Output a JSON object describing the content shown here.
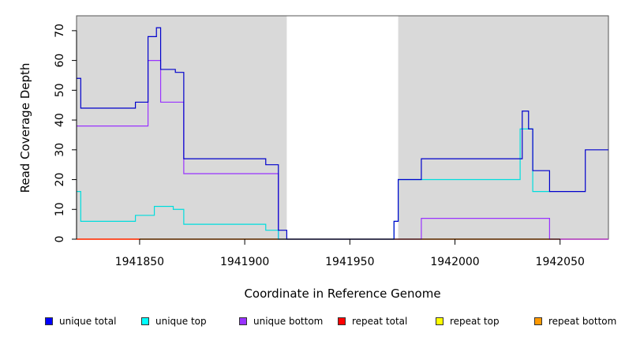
{
  "chart_data": {
    "type": "line",
    "xlabel": "Coordinate in Reference Genome",
    "ylabel": "Read Coverage Depth",
    "xlim": [
      1941820,
      1942073
    ],
    "ylim": [
      0,
      75
    ],
    "x_ticks": [
      1941850,
      1941900,
      1941950,
      1942000,
      1942050
    ],
    "y_ticks": [
      0,
      10,
      20,
      30,
      40,
      50,
      60,
      70
    ],
    "x_tick_labels": [
      "1941850",
      "1941900",
      "1941950",
      "1942000",
      "1942050"
    ],
    "y_tick_labels": [
      "0",
      "10",
      "20",
      "30",
      "40",
      "50",
      "60",
      "70"
    ],
    "shaded_regions": [
      [
        1941820,
        1941920
      ],
      [
        1941973,
        1942073
      ]
    ],
    "shade_color": "#d9d9d9",
    "series": [
      {
        "name": "unique total",
        "color": "#0000cc",
        "points": [
          [
            1941820,
            54
          ],
          [
            1941822,
            54
          ],
          [
            1941822,
            44
          ],
          [
            1941848,
            44
          ],
          [
            1941848,
            46
          ],
          [
            1941854,
            46
          ],
          [
            1941854,
            68
          ],
          [
            1941858,
            68
          ],
          [
            1941858,
            71
          ],
          [
            1941860,
            71
          ],
          [
            1941860,
            57
          ],
          [
            1941867,
            57
          ],
          [
            1941867,
            56
          ],
          [
            1941871,
            56
          ],
          [
            1941871,
            27
          ],
          [
            1941910,
            27
          ],
          [
            1941910,
            25
          ],
          [
            1941916,
            25
          ],
          [
            1941916,
            3
          ],
          [
            1941920,
            3
          ],
          [
            1941920,
            0
          ],
          [
            1941971,
            0
          ],
          [
            1941971,
            6
          ],
          [
            1941973,
            6
          ],
          [
            1941973,
            20
          ],
          [
            1941984,
            20
          ],
          [
            1941984,
            27
          ],
          [
            1942032,
            27
          ],
          [
            1942032,
            43
          ],
          [
            1942035,
            43
          ],
          [
            1942035,
            37
          ],
          [
            1942037,
            37
          ],
          [
            1942037,
            23
          ],
          [
            1942045,
            23
          ],
          [
            1942045,
            16
          ],
          [
            1942062,
            16
          ],
          [
            1942062,
            30
          ],
          [
            1942073,
            30
          ]
        ]
      },
      {
        "name": "unique top",
        "color": "#00dddd",
        "points": [
          [
            1941820,
            16
          ],
          [
            1941822,
            16
          ],
          [
            1941822,
            6
          ],
          [
            1941848,
            6
          ],
          [
            1941848,
            8
          ],
          [
            1941857,
            8
          ],
          [
            1941857,
            11
          ],
          [
            1941866,
            11
          ],
          [
            1941866,
            10
          ],
          [
            1941871,
            10
          ],
          [
            1941871,
            5
          ],
          [
            1941910,
            5
          ],
          [
            1941910,
            3
          ],
          [
            1941916,
            3
          ],
          [
            1941916,
            0
          ],
          [
            1941971,
            0
          ],
          [
            1941971,
            6
          ],
          [
            1941973,
            6
          ],
          [
            1941973,
            20
          ],
          [
            1942031,
            20
          ],
          [
            1942031,
            37
          ],
          [
            1942037,
            37
          ],
          [
            1942037,
            16
          ],
          [
            1942045,
            16
          ]
        ]
      },
      {
        "name": "unique bottom",
        "color": "#9933ff",
        "points": [
          [
            1941820,
            38
          ],
          [
            1941854,
            38
          ],
          [
            1941854,
            60
          ],
          [
            1941860,
            60
          ],
          [
            1941860,
            46
          ],
          [
            1941871,
            46
          ],
          [
            1941871,
            22
          ],
          [
            1941916,
            22
          ],
          [
            1941916,
            0
          ],
          [
            1941984,
            0
          ],
          [
            1941984,
            7
          ],
          [
            1942045,
            7
          ],
          [
            1942045,
            0
          ],
          [
            1942073,
            0
          ]
        ]
      },
      {
        "name": "repeat total",
        "color": "#ff0000",
        "points": [
          [
            1941820,
            0
          ],
          [
            1942073,
            0
          ]
        ]
      },
      {
        "name": "repeat top",
        "color": "#ffff00",
        "points": [
          [
            1941820,
            0
          ],
          [
            1942073,
            0
          ]
        ]
      },
      {
        "name": "repeat bottom",
        "color": "#ff9900",
        "points": [
          [
            1941820,
            0
          ],
          [
            1942073,
            0
          ]
        ]
      }
    ],
    "legend": [
      {
        "label": "unique total",
        "color": "#0000ff"
      },
      {
        "label": "unique top",
        "color": "#00ffff"
      },
      {
        "label": "unique bottom",
        "color": "#9933ff"
      },
      {
        "label": "repeat total",
        "color": "#ff0000"
      },
      {
        "label": "repeat top",
        "color": "#ffff00"
      },
      {
        "label": "repeat bottom",
        "color": "#ff9900"
      }
    ],
    "legend_position": "bottom"
  }
}
